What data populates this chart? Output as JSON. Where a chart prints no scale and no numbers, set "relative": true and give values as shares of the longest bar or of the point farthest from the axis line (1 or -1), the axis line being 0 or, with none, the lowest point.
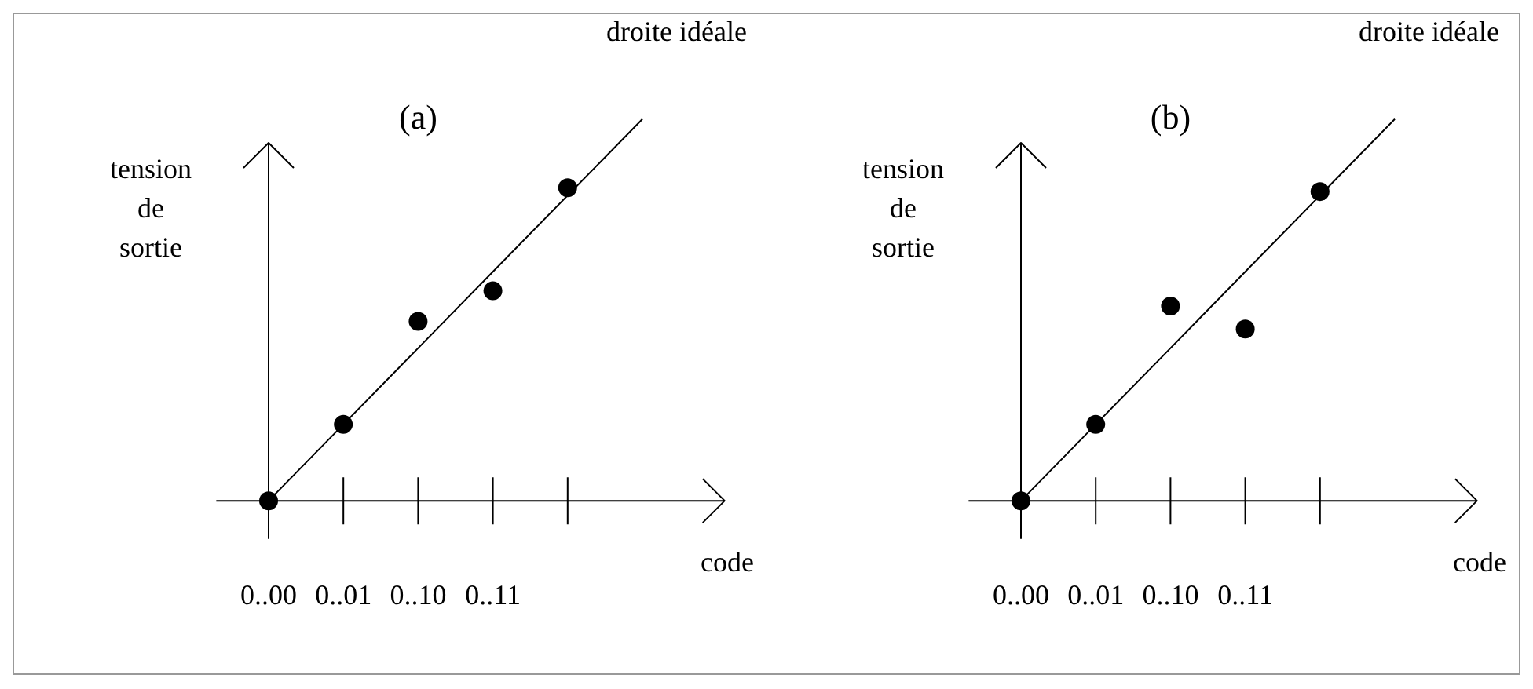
{
  "chart_data": [
    {
      "type": "scatter",
      "title": "(a)",
      "xlabel": "code",
      "ylabel": "tension de sortie",
      "relative": true,
      "categories": [
        "0..00",
        "0..01",
        "0..10",
        "0..11",
        null,
        null
      ],
      "series": [
        {
          "type": "line",
          "name": "droite idéale",
          "color": "#000000",
          "marker": "none",
          "values": [
            0,
            0.2,
            0.4,
            0.6,
            0.8,
            1
          ]
        },
        {
          "type": "scatter",
          "color": "#000000",
          "marker": "circle",
          "values": [
            0,
            0.2,
            0.47,
            0.55,
            0.82,
            null
          ]
        }
      ]
    },
    {
      "type": "scatter",
      "title": "(b)",
      "xlabel": "code",
      "ylabel": "tension de sortie",
      "relative": true,
      "categories": [
        "0..00",
        "0..01",
        "0..10",
        "0..11",
        null,
        null
      ],
      "series": [
        {
          "type": "line",
          "name": "droite idéale",
          "color": "#000000",
          "marker": "none",
          "values": [
            0,
            0.2,
            0.4,
            0.6,
            0.8,
            1
          ]
        },
        {
          "type": "scatter",
          "color": "#000000",
          "marker": "circle",
          "values": [
            0,
            0.2,
            0.51,
            0.45,
            0.81,
            null
          ]
        }
      ]
    }
  ]
}
